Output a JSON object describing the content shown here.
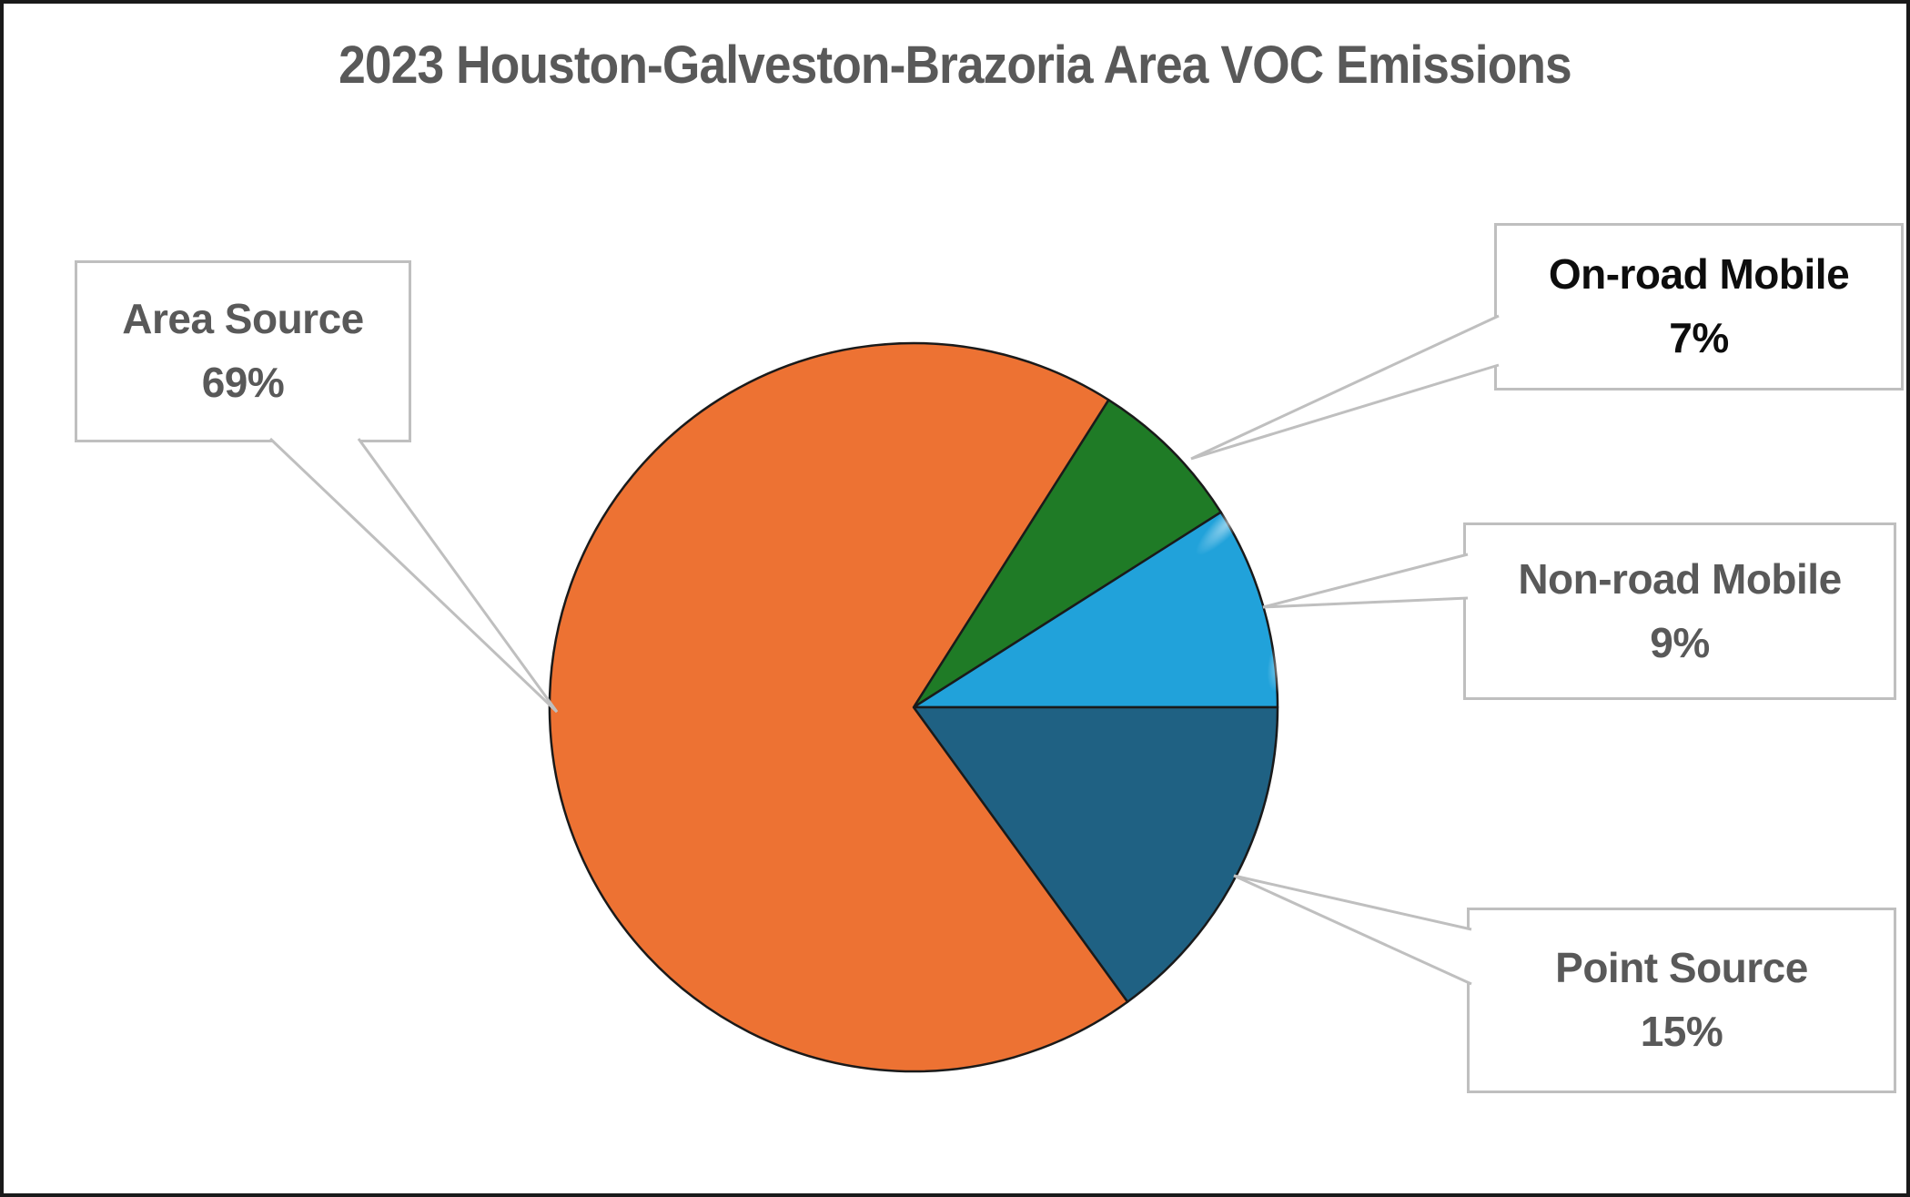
{
  "title": "2023 Houston-Galveston-Brazoria Area VOC Emissions",
  "chart_data": {
    "type": "pie",
    "title": "2023 Houston-Galveston-Brazoria Area VOC Emissions",
    "start_angle_deg": 57.6,
    "direction": "clockwise",
    "legend": "callout boxes with leader pointers",
    "slices": [
      {
        "label": "On-road Mobile",
        "pct": 7,
        "color": "#1f7b26"
      },
      {
        "label": "Non-road Mobile",
        "pct": 9,
        "color": "#21a2da"
      },
      {
        "label": "Point Source",
        "pct": 15,
        "color": "#1f6183"
      },
      {
        "label": "Area Source",
        "pct": 69,
        "color": "#ed7233"
      }
    ]
  },
  "callouts": {
    "area": {
      "label": "Area Source",
      "value": "69%"
    },
    "onroad": {
      "label": "On-road Mobile",
      "value": "7%"
    },
    "nonroad": {
      "label": "Non-road Mobile",
      "value": "9%"
    },
    "point": {
      "label": "Point Source",
      "value": "15%"
    }
  },
  "colors": {
    "title_text": "#595959",
    "callout_border": "#bfbfbf",
    "callout_text": "#595959",
    "onroad_callout_text": "#0d0d0d",
    "pie_outline": "#1a1a1a",
    "frame_border": "#1a1a1a",
    "background": "#ffffff"
  }
}
